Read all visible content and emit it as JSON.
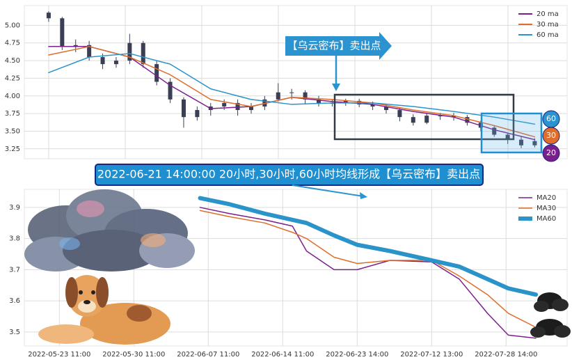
{
  "chart_data": [
    {
      "type": "candlestick",
      "open": [
        5.18,
        5.1,
        4.7,
        4.72,
        4.55,
        4.45,
        4.5,
        4.75,
        4.45,
        4.2,
        3.95,
        3.7,
        3.8,
        3.85,
        3.9,
        3.8,
        3.85,
        3.95,
        4.05,
        4.05,
        3.95,
        3.9,
        3.9,
        3.93,
        3.88,
        3.85,
        3.8,
        3.7,
        3.62,
        3.72,
        3.72,
        3.7,
        3.62,
        3.55,
        3.45,
        3.38,
        3.3
      ],
      "high": [
        5.2,
        5.12,
        4.8,
        4.78,
        4.6,
        4.55,
        4.88,
        4.78,
        4.5,
        4.25,
        3.98,
        3.85,
        3.9,
        3.95,
        3.95,
        3.9,
        4.0,
        4.18,
        4.1,
        4.08,
        4.0,
        3.95,
        3.96,
        3.96,
        3.92,
        3.88,
        3.83,
        3.74,
        3.75,
        3.76,
        3.76,
        3.73,
        3.65,
        3.58,
        3.48,
        3.42,
        3.4
      ],
      "low": [
        5.05,
        4.65,
        4.62,
        4.5,
        4.38,
        4.4,
        4.45,
        4.4,
        4.15,
        3.9,
        3.55,
        3.65,
        3.72,
        3.8,
        3.72,
        3.75,
        3.8,
        3.92,
        3.95,
        3.88,
        3.85,
        3.85,
        3.86,
        3.84,
        3.8,
        3.75,
        3.64,
        3.58,
        3.6,
        3.66,
        3.65,
        3.58,
        3.5,
        3.42,
        3.32,
        3.26,
        3.27
      ],
      "close": [
        5.1,
        4.7,
        4.72,
        4.55,
        4.45,
        4.5,
        4.75,
        4.45,
        4.2,
        3.95,
        3.7,
        3.8,
        3.85,
        3.9,
        3.8,
        3.85,
        3.95,
        4.05,
        4.05,
        3.95,
        3.9,
        3.9,
        3.93,
        3.88,
        3.85,
        3.8,
        3.7,
        3.62,
        3.72,
        3.72,
        3.7,
        3.62,
        3.55,
        3.45,
        3.38,
        3.3,
        3.36
      ],
      "candle_color": "#3a3f55",
      "series": [
        {
          "name": "20 ma",
          "color": "#7b1f8c",
          "x": [
            0,
            3,
            6,
            9,
            12,
            15,
            18,
            21,
            24,
            27,
            30,
            33,
            36
          ],
          "values": [
            4.7,
            4.7,
            4.55,
            4.15,
            3.82,
            3.85,
            3.98,
            3.92,
            3.88,
            3.78,
            3.7,
            3.52,
            3.38
          ]
        },
        {
          "name": "30 ma",
          "color": "#e06d2a",
          "x": [
            0,
            3,
            6,
            9,
            12,
            15,
            18,
            21,
            24,
            27,
            30,
            33,
            36
          ],
          "values": [
            4.58,
            4.7,
            4.55,
            4.3,
            3.95,
            3.85,
            3.98,
            3.95,
            3.9,
            3.8,
            3.72,
            3.58,
            3.42
          ]
        },
        {
          "name": "60 ma",
          "color": "#2a93c9",
          "x": [
            0,
            3,
            6,
            9,
            12,
            15,
            18,
            21,
            24,
            27,
            30,
            33,
            36
          ],
          "values": [
            4.33,
            4.55,
            4.6,
            4.45,
            4.1,
            3.95,
            3.88,
            3.9,
            3.9,
            3.85,
            3.78,
            3.7,
            3.6
          ]
        }
      ],
      "xlim": [
        -1.8,
        38.4
      ],
      "xticks": [
        0,
        5.67,
        11.34,
        17.01,
        22.68,
        28.35,
        34.02
      ],
      "ylim": [
        3.11,
        5.28
      ],
      "yticks": [
        {
          "value": 3.25,
          "label": "3.25"
        },
        {
          "value": 3.5,
          "label": "3.50"
        },
        {
          "value": 3.75,
          "label": "3.75"
        },
        {
          "value": 4.0,
          "label": "4.00"
        },
        {
          "value": 4.25,
          "label": "4.25"
        },
        {
          "value": 4.5,
          "label": "4.50"
        },
        {
          "value": 4.75,
          "label": "4.75"
        },
        {
          "value": 5.0,
          "label": "5.00"
        }
      ],
      "grid": true,
      "legend": "upper right",
      "annotations": [
        "【乌云密布】卖出点",
        "2022-06-21 14:00:00 20小时,30小时,60小时均线形成【乌云密布】卖出点"
      ],
      "badge_labels": [
        "60",
        "30",
        "20"
      ]
    },
    {
      "type": "line",
      "x": [
        1.89,
        2.29,
        2.76,
        3.13,
        3.32,
        3.69,
        4.0,
        4.44,
        5.0,
        5.37,
        5.75,
        6.03,
        6.4
      ],
      "series": [
        {
          "name": "MA20",
          "color": "#7b1f8c",
          "width": 1.5,
          "values": [
            3.9,
            3.88,
            3.86,
            3.84,
            3.76,
            3.7,
            3.7,
            3.73,
            3.725,
            3.67,
            3.56,
            3.49,
            3.48
          ]
        },
        {
          "name": "MA30",
          "color": "#e06d2a",
          "width": 1.5,
          "values": [
            3.89,
            3.87,
            3.85,
            3.82,
            3.8,
            3.74,
            3.72,
            3.73,
            3.73,
            3.68,
            3.62,
            3.56,
            3.515
          ]
        },
        {
          "name": "MA60",
          "color": "#2a93c9",
          "width": 6,
          "values": [
            3.93,
            3.91,
            3.88,
            3.86,
            3.85,
            3.81,
            3.78,
            3.76,
            3.73,
            3.71,
            3.67,
            3.64,
            3.62
          ]
        }
      ],
      "xlim": [
        -0.47,
        6.82
      ],
      "xticks": [
        {
          "value": 0,
          "label": "2022-05-23 11:00"
        },
        {
          "value": 1,
          "label": "2022-05-30 11:00"
        },
        {
          "value": 2,
          "label": "2022-06-07 11:00"
        },
        {
          "value": 3,
          "label": "2022-06-14 11:00"
        },
        {
          "value": 4,
          "label": "2022-06-23 14:00"
        },
        {
          "value": 5,
          "label": "2022-07-12 13:00"
        },
        {
          "value": 6,
          "label": "2022-07-28 14:00"
        }
      ],
      "ylim": [
        3.455,
        3.958
      ],
      "yticks": [
        3.5,
        3.6,
        3.7,
        3.8,
        3.9
      ],
      "grid": true,
      "legend": "upper right"
    }
  ]
}
